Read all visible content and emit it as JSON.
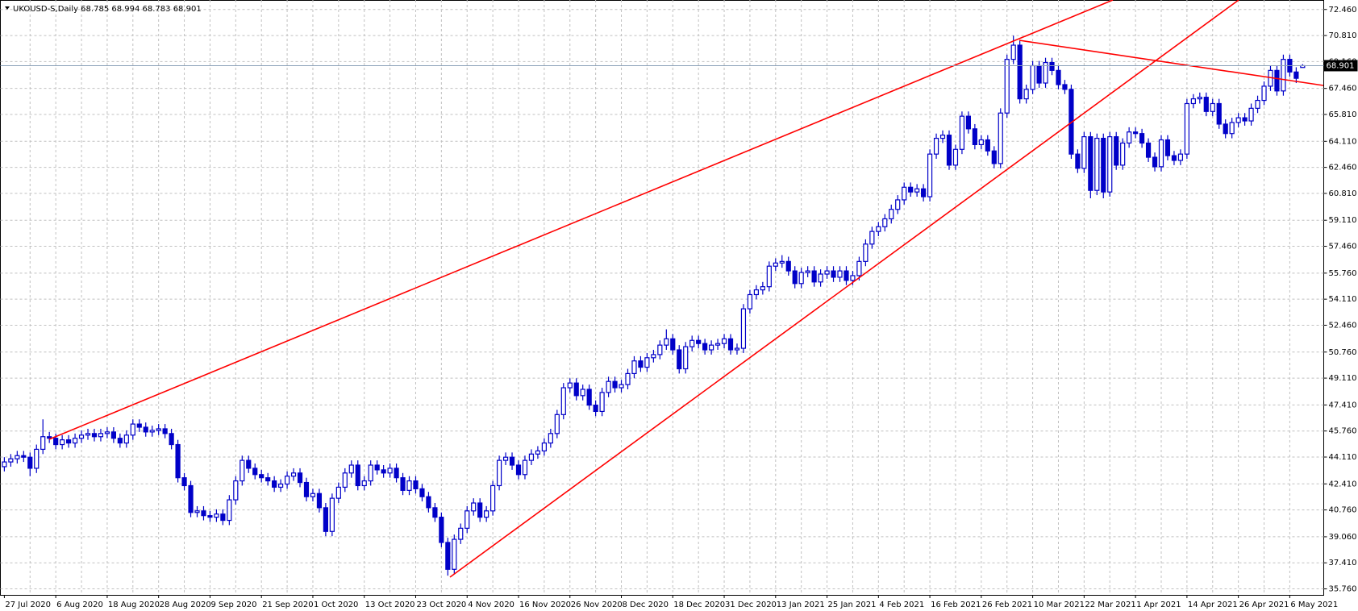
{
  "chart_data": {
    "type": "candlestick",
    "title": "UKOUSD-S,Daily  68.785 68.994 68.783 68.901",
    "color": "#0000c8",
    "bid": 68.901,
    "bid_label": "68.901",
    "ylim": [
      35.38,
      73.06
    ],
    "yticks": [
      {
        "value": 72.46,
        "label": "72.460"
      },
      {
        "value": 70.81,
        "label": "70.810"
      },
      {
        "value": 69.16,
        "label": "69.160"
      },
      {
        "value": 67.46,
        "label": "67.460"
      },
      {
        "value": 65.81,
        "label": "65.810"
      },
      {
        "value": 64.11,
        "label": "64.110"
      },
      {
        "value": 62.46,
        "label": "62.460"
      },
      {
        "value": 60.81,
        "label": "60.810"
      },
      {
        "value": 59.11,
        "label": "59.110"
      },
      {
        "value": 57.46,
        "label": "57.460"
      },
      {
        "value": 55.76,
        "label": "55.760"
      },
      {
        "value": 54.11,
        "label": "54.110"
      },
      {
        "value": 52.46,
        "label": "52.460"
      },
      {
        "value": 50.76,
        "label": "50.760"
      },
      {
        "value": 49.11,
        "label": "49.110"
      },
      {
        "value": 47.41,
        "label": "47.410"
      },
      {
        "value": 45.76,
        "label": "45.760"
      },
      {
        "value": 44.11,
        "label": "44.110"
      },
      {
        "value": 42.41,
        "label": "42.410"
      },
      {
        "value": 40.76,
        "label": "40.760"
      },
      {
        "value": 39.06,
        "label": "39.060"
      },
      {
        "value": 37.41,
        "label": "37.410"
      },
      {
        "value": 35.76,
        "label": "35.760"
      }
    ],
    "grid": true,
    "categories": [
      "27 Jul 2020",
      null,
      null,
      null,
      null,
      null,
      null,
      null,
      "6 Aug 2020",
      null,
      null,
      null,
      null,
      null,
      null,
      null,
      "18 Aug 2020",
      null,
      null,
      null,
      null,
      null,
      null,
      null,
      "28 Aug 2020",
      null,
      null,
      null,
      null,
      null,
      null,
      null,
      "9 Sep 2020",
      null,
      null,
      null,
      null,
      null,
      null,
      null,
      "21 Sep 2020",
      null,
      null,
      null,
      null,
      null,
      null,
      null,
      "1 Oct 2020",
      null,
      null,
      null,
      null,
      null,
      null,
      null,
      "13 Oct 2020",
      null,
      null,
      null,
      null,
      null,
      null,
      null,
      "23 Oct 2020",
      null,
      null,
      null,
      null,
      null,
      null,
      null,
      "4 Nov 2020",
      null,
      null,
      null,
      null,
      null,
      null,
      null,
      "16 Nov 2020",
      null,
      null,
      null,
      null,
      null,
      null,
      null,
      "26 Nov 2020",
      null,
      null,
      null,
      null,
      null,
      null,
      null,
      "8 Dec 2020",
      null,
      null,
      null,
      null,
      null,
      null,
      null,
      "18 Dec 2020",
      null,
      null,
      null,
      null,
      null,
      null,
      null,
      "31 Dec 2020",
      null,
      null,
      null,
      null,
      null,
      null,
      null,
      "13 Jan 2021",
      null,
      null,
      null,
      null,
      null,
      null,
      null,
      "25 Jan 2021",
      null,
      null,
      null,
      null,
      null,
      null,
      null,
      "4 Feb 2021",
      null,
      null,
      null,
      null,
      null,
      null,
      null,
      "16 Feb 2021",
      null,
      null,
      null,
      null,
      null,
      null,
      null,
      "26 Feb 2021",
      null,
      null,
      null,
      null,
      null,
      null,
      null,
      "10 Mar 2021",
      null,
      null,
      null,
      null,
      null,
      null,
      null,
      "22 Mar 2021",
      null,
      null,
      null,
      null,
      null,
      null,
      null,
      "1 Apr 2021",
      null,
      null,
      null,
      null,
      null,
      null,
      null,
      "14 Apr 2021",
      null,
      null,
      null,
      null,
      null,
      null,
      null,
      "26 Apr 2021",
      null,
      null,
      null,
      null,
      null,
      null,
      null,
      "6 May 2021",
      null,
      null
    ],
    "open": [
      43.5,
      43.8,
      44.0,
      44.2,
      44.1,
      43.4,
      44.6,
      45.4,
      45.3,
      44.9,
      45.2,
      45.0,
      45.3,
      45.5,
      45.6,
      45.4,
      45.6,
      45.7,
      45.3,
      45.0,
      45.5,
      46.2,
      46.0,
      45.7,
      45.8,
      45.9,
      45.6,
      44.9,
      42.8,
      42.3,
      40.6,
      40.7,
      40.4,
      40.3,
      40.5,
      40.1,
      41.4,
      42.6,
      43.9,
      43.4,
      43.0,
      42.8,
      42.6,
      42.2,
      42.4,
      42.9,
      43.1,
      42.5,
      41.6,
      41.8,
      40.9,
      39.4,
      41.5,
      42.2,
      43.1,
      43.6,
      42.3,
      42.6,
      43.6,
      43.3,
      43.1,
      43.4,
      42.8,
      42.0,
      42.6,
      42.1,
      41.6,
      40.9,
      40.3,
      38.7,
      37.0,
      38.9,
      39.6,
      40.7,
      41.2,
      40.3,
      40.7,
      42.3,
      43.9,
      44.1,
      43.6,
      43.0,
      43.9,
      44.3,
      44.5,
      45.0,
      45.6,
      46.8,
      48.5,
      48.8,
      48.0,
      48.4,
      47.4,
      47.0,
      48.2,
      48.9,
      48.5,
      48.7,
      49.4,
      50.2,
      49.8,
      50.4,
      50.6,
      51.2,
      51.6,
      50.9,
      49.7,
      51.1,
      51.5,
      51.3,
      50.9,
      51.2,
      51.3,
      51.6,
      50.9,
      51.0,
      53.5,
      54.4,
      54.7,
      54.9,
      56.2,
      56.4,
      56.5,
      55.9,
      55.1,
      55.8,
      55.9,
      55.2,
      55.7,
      55.9,
      55.5,
      55.9,
      55.3,
      55.6,
      56.5,
      57.6,
      58.4,
      58.7,
      59.2,
      59.8,
      60.4,
      61.2,
      60.9,
      61.1,
      60.6,
      63.3,
      64.3,
      64.5,
      62.6,
      63.6,
      65.7,
      64.9,
      63.9,
      64.2,
      63.5,
      62.7,
      65.9,
      69.3,
      70.2,
      66.8,
      67.4,
      68.9,
      67.8,
      69.1,
      68.6,
      67.7,
      67.4,
      63.3,
      62.4,
      64.4,
      61.0,
      64.3,
      60.9,
      64.4,
      62.6,
      64.0,
      64.7,
      64.6,
      64.0,
      63.1,
      62.5,
      64.2,
      63.2,
      62.9,
      63.3,
      66.5,
      66.8,
      66.9,
      66.0,
      66.5,
      65.2,
      64.6,
      65.3,
      65.6,
      65.4,
      66.2,
      66.7,
      67.6,
      68.6,
      67.3,
      69.3,
      68.5,
      68.785
    ],
    "high": [
      44.1,
      44.3,
      44.5,
      44.5,
      44.4,
      44.9,
      46.5,
      45.7,
      45.6,
      45.5,
      45.5,
      45.6,
      45.8,
      45.9,
      45.9,
      45.9,
      46.0,
      46.0,
      45.6,
      45.8,
      46.5,
      46.5,
      46.3,
      46.1,
      46.2,
      46.2,
      45.9,
      45.2,
      43.1,
      42.6,
      41.0,
      41.0,
      40.7,
      40.8,
      40.8,
      41.7,
      42.9,
      44.2,
      44.2,
      43.7,
      43.3,
      43.1,
      42.9,
      42.7,
      43.2,
      43.4,
      43.4,
      42.8,
      42.1,
      42.1,
      41.2,
      41.8,
      42.5,
      43.4,
      43.9,
      43.9,
      42.9,
      43.9,
      43.9,
      43.6,
      43.7,
      43.7,
      43.1,
      42.9,
      42.9,
      42.4,
      41.9,
      41.2,
      40.6,
      39.0,
      39.2,
      39.9,
      41.0,
      41.5,
      41.5,
      41.0,
      42.6,
      44.2,
      44.4,
      44.4,
      43.9,
      44.2,
      44.6,
      44.8,
      45.3,
      45.9,
      47.1,
      48.8,
      49.1,
      49.1,
      48.7,
      48.7,
      47.7,
      48.5,
      49.2,
      49.2,
      49.0,
      49.7,
      50.5,
      50.5,
      50.7,
      50.9,
      51.5,
      52.2,
      51.9,
      51.2,
      51.4,
      51.8,
      51.8,
      51.6,
      51.5,
      51.6,
      51.9,
      51.9,
      51.3,
      53.8,
      54.7,
      55.0,
      55.2,
      56.5,
      56.7,
      56.9,
      56.8,
      56.2,
      56.1,
      56.2,
      56.2,
      56.0,
      56.2,
      56.2,
      56.2,
      56.2,
      55.9,
      56.8,
      57.9,
      58.7,
      59.0,
      59.5,
      60.1,
      60.7,
      61.5,
      61.5,
      61.4,
      61.4,
      63.6,
      64.6,
      64.8,
      64.8,
      63.9,
      66.0,
      66.0,
      65.2,
      64.5,
      64.5,
      63.8,
      66.2,
      69.6,
      70.8,
      70.5,
      67.7,
      69.2,
      69.2,
      69.4,
      69.4,
      68.9,
      68.0,
      67.7,
      63.6,
      64.7,
      64.7,
      64.6,
      64.6,
      64.7,
      64.7,
      64.3,
      65.0,
      65.0,
      64.9,
      64.3,
      63.4,
      64.5,
      64.5,
      63.5,
      63.6,
      66.8,
      67.1,
      67.2,
      67.2,
      66.8,
      66.8,
      65.5,
      65.6,
      65.9,
      65.9,
      66.5,
      67.0,
      67.9,
      68.9,
      68.9,
      69.6,
      69.6,
      68.8,
      68.994
    ],
    "low": [
      43.2,
      43.5,
      43.7,
      43.8,
      42.9,
      43.1,
      44.3,
      45.0,
      44.6,
      44.6,
      44.7,
      44.7,
      45.0,
      45.2,
      45.1,
      45.1,
      45.3,
      45.0,
      44.7,
      44.7,
      45.2,
      45.7,
      45.4,
      45.4,
      45.5,
      45.3,
      44.6,
      42.5,
      42.0,
      40.3,
      40.3,
      40.1,
      40.0,
      40.0,
      39.8,
      39.8,
      41.1,
      42.3,
      43.1,
      42.7,
      42.5,
      42.3,
      41.9,
      41.9,
      42.1,
      42.6,
      42.2,
      41.3,
      41.3,
      40.6,
      39.1,
      39.1,
      41.2,
      41.9,
      42.8,
      42.0,
      42.0,
      42.3,
      43.0,
      42.8,
      42.8,
      42.5,
      41.7,
      41.7,
      41.8,
      41.3,
      40.6,
      40.0,
      38.4,
      36.6,
      36.7,
      38.6,
      39.3,
      40.4,
      40.0,
      40.0,
      40.4,
      42.0,
      43.6,
      43.3,
      42.7,
      42.7,
      43.6,
      44.0,
      44.2,
      44.7,
      45.3,
      46.5,
      48.2,
      47.7,
      47.7,
      47.1,
      46.7,
      46.7,
      47.9,
      48.2,
      48.2,
      48.4,
      49.1,
      49.5,
      49.5,
      50.1,
      50.3,
      50.9,
      50.6,
      49.4,
      49.4,
      50.8,
      51.0,
      50.6,
      50.6,
      50.9,
      51.0,
      50.6,
      50.6,
      50.7,
      53.2,
      54.1,
      54.4,
      54.6,
      55.9,
      56.1,
      55.6,
      54.8,
      54.8,
      55.5,
      54.9,
      54.9,
      55.4,
      55.2,
      55.2,
      55.0,
      55.0,
      55.3,
      56.2,
      57.3,
      58.1,
      58.4,
      58.9,
      59.5,
      60.1,
      60.6,
      60.6,
      60.3,
      60.3,
      63.0,
      64.0,
      62.3,
      62.3,
      63.3,
      64.6,
      63.6,
      63.6,
      63.2,
      62.4,
      62.4,
      65.6,
      69.0,
      66.5,
      66.5,
      67.1,
      67.5,
      67.5,
      68.3,
      67.4,
      67.1,
      63.0,
      62.1,
      62.1,
      60.5,
      60.7,
      60.5,
      60.6,
      62.3,
      62.3,
      63.7,
      64.3,
      63.7,
      62.8,
      62.2,
      62.2,
      62.9,
      62.6,
      62.6,
      63.0,
      66.2,
      66.5,
      65.7,
      65.7,
      64.9,
      64.3,
      64.3,
      65.0,
      65.1,
      65.1,
      65.9,
      66.4,
      67.3,
      67.0,
      67.0,
      68.2,
      67.8,
      68.783
    ],
    "close": [
      43.8,
      44.0,
      44.2,
      44.1,
      43.4,
      44.6,
      45.4,
      45.3,
      44.9,
      45.2,
      45.0,
      45.3,
      45.5,
      45.6,
      45.4,
      45.6,
      45.7,
      45.3,
      45.0,
      45.5,
      46.2,
      46.0,
      45.7,
      45.8,
      45.9,
      45.6,
      44.9,
      42.8,
      42.3,
      40.6,
      40.7,
      40.4,
      40.3,
      40.5,
      40.1,
      41.4,
      42.6,
      43.9,
      43.4,
      43.0,
      42.8,
      42.6,
      42.2,
      42.4,
      42.9,
      43.1,
      42.5,
      41.6,
      41.8,
      40.9,
      39.4,
      41.5,
      42.2,
      43.1,
      43.6,
      42.3,
      42.6,
      43.6,
      43.3,
      43.1,
      43.4,
      42.8,
      42.0,
      42.6,
      42.1,
      41.6,
      40.9,
      40.3,
      38.7,
      37.0,
      38.9,
      39.6,
      40.7,
      41.2,
      40.3,
      40.7,
      42.3,
      43.9,
      44.1,
      43.6,
      43.0,
      43.9,
      44.3,
      44.5,
      45.0,
      45.6,
      46.8,
      48.5,
      48.8,
      48.0,
      48.4,
      47.4,
      47.0,
      48.2,
      48.9,
      48.5,
      48.7,
      49.4,
      50.2,
      49.8,
      50.4,
      50.6,
      51.2,
      51.6,
      50.9,
      49.7,
      51.1,
      51.5,
      51.3,
      50.9,
      51.2,
      51.3,
      51.6,
      50.9,
      51.0,
      53.5,
      54.4,
      54.7,
      54.9,
      56.2,
      56.4,
      56.5,
      55.9,
      55.1,
      55.8,
      55.9,
      55.2,
      55.7,
      55.9,
      55.5,
      55.9,
      55.3,
      55.6,
      56.5,
      57.6,
      58.4,
      58.7,
      59.2,
      59.8,
      60.4,
      61.2,
      60.9,
      61.1,
      60.6,
      63.3,
      64.3,
      64.5,
      62.6,
      63.6,
      65.7,
      64.9,
      63.9,
      64.2,
      63.5,
      62.7,
      65.9,
      69.3,
      70.2,
      66.8,
      67.4,
      68.9,
      67.8,
      69.1,
      68.6,
      67.7,
      67.4,
      63.3,
      62.4,
      64.4,
      61.0,
      64.3,
      60.9,
      64.4,
      62.6,
      64.0,
      64.7,
      64.6,
      64.0,
      63.1,
      62.5,
      64.2,
      63.2,
      62.9,
      63.3,
      66.5,
      66.8,
      66.9,
      66.0,
      66.5,
      65.2,
      64.6,
      65.3,
      65.6,
      65.4,
      66.2,
      66.7,
      67.6,
      68.6,
      67.3,
      69.3,
      68.5,
      68.1,
      68.901
    ]
  }
}
